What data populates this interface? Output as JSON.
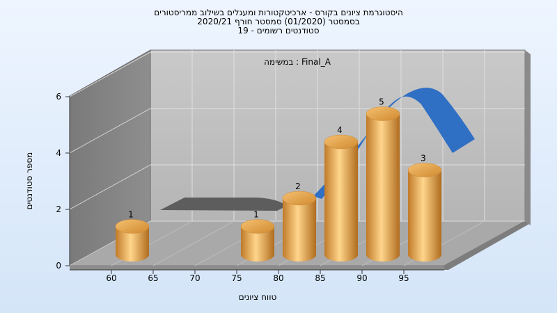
{
  "chart_data": {
    "type": "bar",
    "title_lines": [
      "היסטוגרמת ציונים בקורס - ארכיטקטורות ומעגלים בשילוב ממריסטורים",
      "בסמסטר  (01/2020)  סמסטר חורף  2020/21",
      "סטודנטים רשומים - 19"
    ],
    "annotation": "במשימה : Final_A",
    "xlabel": "טווח ציונים",
    "ylabel": "מספר סטודנטים",
    "x_ticks": [
      "60",
      "65",
      "70",
      "75",
      "80",
      "85",
      "90",
      "95"
    ],
    "y_ticks": [
      "0",
      "2",
      "4",
      "6"
    ],
    "ylim": [
      0,
      6
    ],
    "categories": [
      "60",
      "75",
      "80",
      "85",
      "90",
      "95"
    ],
    "values": [
      1,
      1,
      2,
      4,
      5,
      3
    ],
    "bar_color": "#e8a850",
    "curve_color": "#2f6fc4",
    "grid": true
  }
}
